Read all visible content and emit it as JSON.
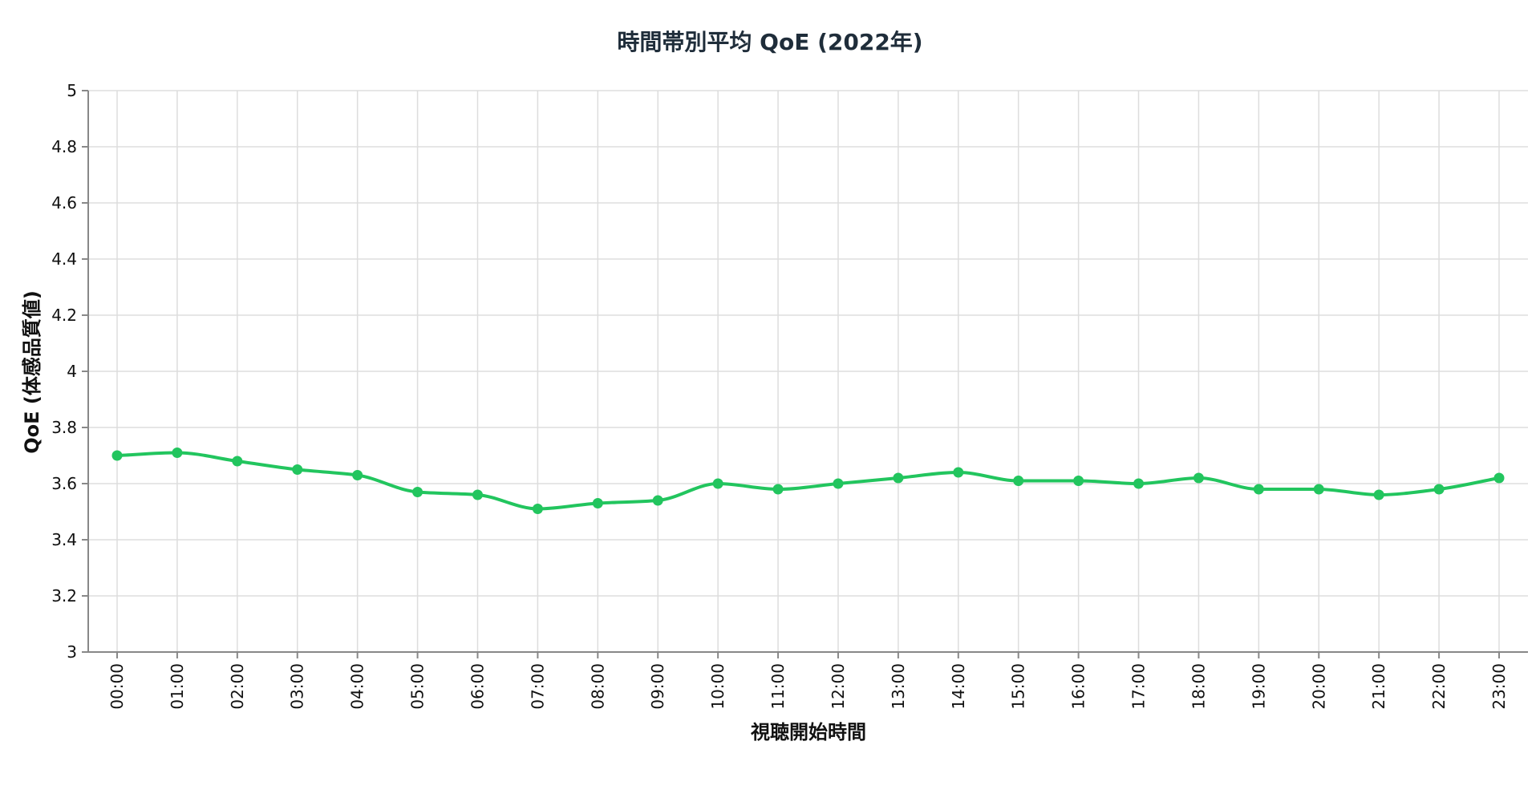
{
  "chart_data": {
    "type": "line",
    "title": "時間帯別平均 QoE (2022年)",
    "xlabel": "視聴開始時間",
    "ylabel": "QoE (体感品質値)",
    "ylim": [
      3,
      5
    ],
    "y_ticks": [
      "3",
      "3.2",
      "3.4",
      "3.6",
      "3.8",
      "4",
      "4.2",
      "4.4",
      "4.6",
      "4.8",
      "5"
    ],
    "grid": true,
    "line_color": "#22c55e",
    "categories": [
      "00:00",
      "01:00",
      "02:00",
      "03:00",
      "04:00",
      "05:00",
      "06:00",
      "07:00",
      "08:00",
      "09:00",
      "10:00",
      "11:00",
      "12:00",
      "13:00",
      "14:00",
      "15:00",
      "16:00",
      "17:00",
      "18:00",
      "19:00",
      "20:00",
      "21:00",
      "22:00",
      "23:00"
    ],
    "values": [
      3.7,
      3.71,
      3.68,
      3.65,
      3.63,
      3.57,
      3.56,
      3.51,
      3.53,
      3.54,
      3.6,
      3.58,
      3.6,
      3.62,
      3.64,
      3.61,
      3.61,
      3.6,
      3.62,
      3.58,
      3.58,
      3.56,
      3.58,
      3.62
    ]
  }
}
